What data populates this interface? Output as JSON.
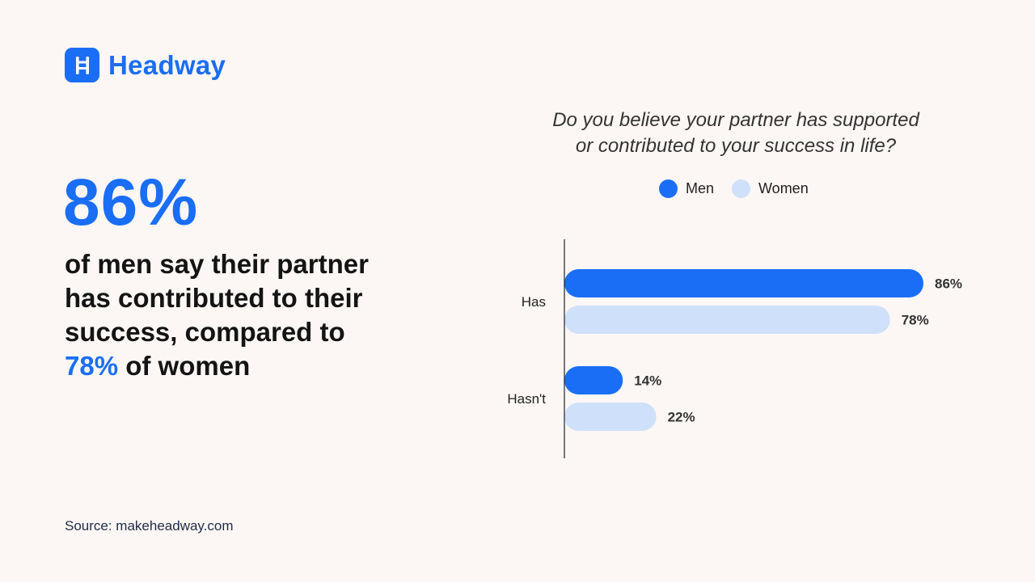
{
  "brand": {
    "name": "Headway",
    "icon": "ladder-icon",
    "color": "#1a6ef5"
  },
  "stat": {
    "big_value": "86%",
    "line_main": "of men say their partner has contributed to their success, compared to",
    "highlight": "78%",
    "line_tail": " of women"
  },
  "source": "Source: makeheadway.com",
  "chart_data": {
    "type": "bar",
    "orientation": "horizontal",
    "title_line1": "Do you believe your partner has supported",
    "title_line2": "or contributed to your success in life?",
    "categories": [
      "Has",
      "Hasn't"
    ],
    "series": [
      {
        "name": "Men",
        "values": [
          86,
          14
        ],
        "labels": [
          "86%",
          "14%"
        ],
        "color": "#1a6ef5"
      },
      {
        "name": "Women",
        "values": [
          78,
          22
        ],
        "labels": [
          "78%",
          "22%"
        ],
        "color": "#cfe0fb"
      }
    ],
    "xlim": [
      0,
      86
    ],
    "legend": "top",
    "grid": false
  }
}
